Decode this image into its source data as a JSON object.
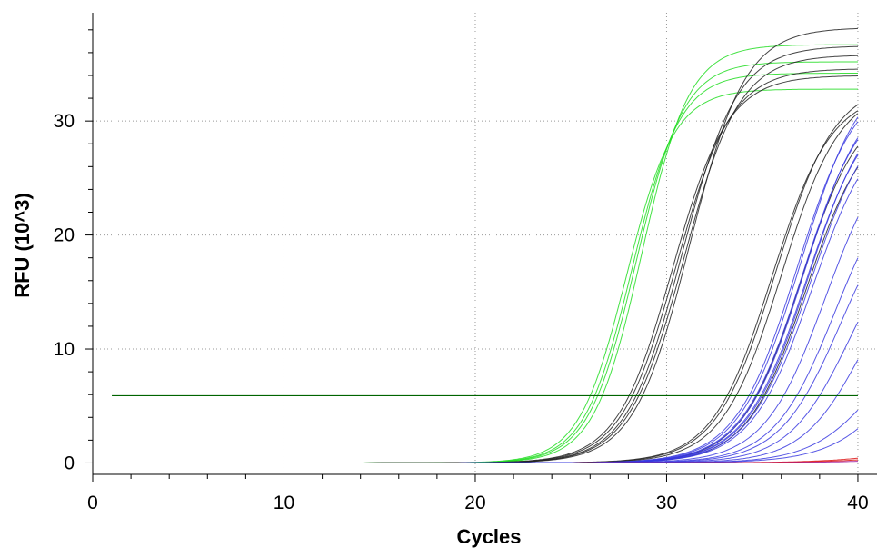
{
  "chart_data": {
    "type": "line",
    "title": "",
    "xlabel": "Cycles",
    "ylabel": "RFU (10^3)",
    "xlim": [
      0,
      41
    ],
    "ylim": [
      -1,
      39.5
    ],
    "x_ticks": [
      0,
      10,
      20,
      30,
      40
    ],
    "y_ticks": [
      0,
      10,
      20,
      30
    ],
    "x_tick_labels": [
      "0",
      "10",
      "20",
      "30",
      "40"
    ],
    "y_tick_labels": [
      "0",
      "10",
      "20",
      30
    ],
    "grid": true,
    "threshold": {
      "value": 5.9,
      "color": "#006400"
    },
    "colors": {
      "green": "#22dd22",
      "black": "#222222",
      "blue": "#3a3ae0",
      "red": "#dd1111",
      "purple": "#a020a0"
    },
    "series_groups": [
      {
        "color": "green",
        "curves": [
          [
            36.7,
            28.7,
            1.25
          ],
          [
            35.2,
            28.4,
            1.25
          ],
          [
            34.2,
            28.2,
            1.25
          ],
          [
            32.8,
            27.9,
            1.25
          ]
        ]
      },
      {
        "color": "black",
        "curves": [
          [
            38.2,
            31.2,
            1.45
          ],
          [
            36.6,
            30.8,
            1.45
          ],
          [
            35.8,
            30.9,
            1.45
          ],
          [
            34.6,
            30.5,
            1.45
          ],
          [
            34.0,
            30.3,
            1.45
          ],
          [
            33.0,
            36.0,
            1.55
          ],
          [
            33.4,
            35.7,
            1.55
          ],
          [
            32.6,
            35.5,
            1.55
          ],
          [
            31.8,
            37.0,
            1.55
          ],
          [
            30.5,
            37.3,
            1.55
          ]
        ]
      },
      {
        "color": "blue",
        "curves": [
          [
            35.0,
            37.0,
            1.6
          ],
          [
            34.0,
            36.8,
            1.6
          ],
          [
            33.5,
            37.2,
            1.6
          ],
          [
            33.0,
            37.1,
            1.6
          ],
          [
            32.5,
            37.4,
            1.6
          ],
          [
            32.0,
            37.3,
            1.6
          ],
          [
            31.5,
            37.5,
            1.6
          ],
          [
            30.5,
            37.6,
            1.6
          ],
          [
            29.0,
            38.3,
            1.6
          ],
          [
            26.5,
            38.8,
            1.6
          ],
          [
            24.5,
            39.1,
            1.6
          ],
          [
            22.0,
            39.6,
            1.6
          ],
          [
            20.0,
            40.3,
            1.6
          ],
          [
            13.0,
            41.0,
            1.7
          ],
          [
            22.0,
            43.5,
            1.9
          ]
        ]
      },
      {
        "color": "red",
        "curves": [
          [
            3.0,
            44.0,
            2.2
          ],
          [
            2.2,
            44.5,
            2.3
          ]
        ]
      },
      {
        "color": "purple",
        "curves": [
          [
            1.8,
            46.0,
            2.5
          ]
        ]
      }
    ]
  }
}
